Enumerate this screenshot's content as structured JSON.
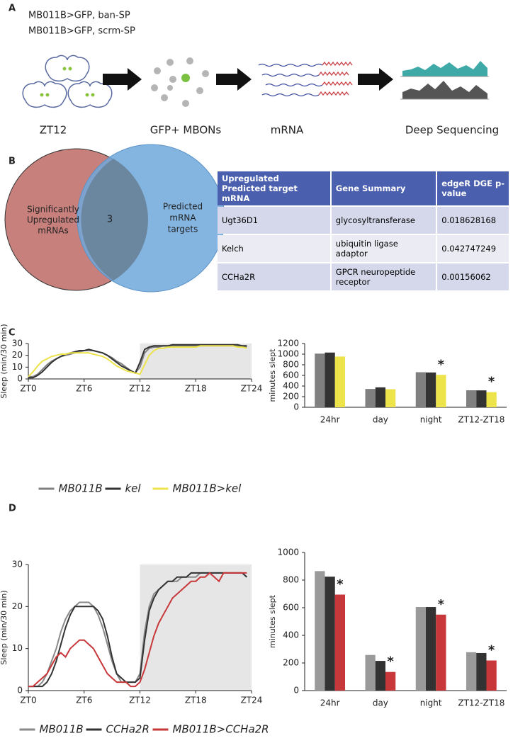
{
  "panels": [
    "A",
    "B",
    "C",
    "D"
  ],
  "diagram": {
    "legend": [
      {
        "text": "MB011B>GFP, ban-SP",
        "color": "#3a9ea5"
      },
      {
        "text": "MB011B>GFP, scrm-SP",
        "color": "#6d6d6d"
      }
    ],
    "steps": [
      {
        "text": "ZT12",
        "color": "#222222"
      },
      {
        "text": "GFP+ MBONs",
        "color": "#6aa534"
      },
      {
        "text": "mRNA",
        "color": "#c9444a"
      },
      {
        "text": "Deep Sequencing",
        "color": "#222222"
      }
    ]
  },
  "venn": {
    "left": [
      "Significantly",
      "Upregulated",
      "mRNAs"
    ],
    "right": [
      "Predicted",
      "mRNA",
      "targets"
    ],
    "overlap": 3
  },
  "table": {
    "header": [
      "Upregulated Predicted target mRNA",
      "Gene Summary",
      "edgeR DGE p-value"
    ],
    "rows": [
      [
        "Ugt36D1",
        "glycosyltransferase",
        0.018628168
      ],
      [
        "Kelch",
        "ubiquitin ligase adaptor",
        0.042747249
      ],
      [
        "CCHa2R",
        "GPCR neuropeptide receptor",
        0.00156062
      ]
    ]
  },
  "chart_data": [
    {
      "type": "line",
      "ylabel": "Sleep (min/30 min)",
      "ylim": [
        0,
        30
      ],
      "yticks": [
        0,
        10,
        20,
        30
      ],
      "xlim": [
        0,
        24
      ],
      "xticks": [
        {
          "value": 0,
          "label": "ZT0"
        },
        {
          "value": 6,
          "label": "ZT6"
        },
        {
          "value": 12,
          "label": "ZT12"
        },
        {
          "value": 18,
          "label": "ZT18"
        },
        {
          "value": 24,
          "label": "ZT24"
        }
      ],
      "shade": [
        12,
        24
      ],
      "x": [
        0,
        0.5,
        1,
        1.5,
        2,
        2.5,
        3,
        3.5,
        4,
        4.5,
        5,
        5.5,
        6,
        6.5,
        7,
        7.5,
        8,
        8.5,
        9,
        9.5,
        10,
        10.5,
        11,
        11.5,
        12,
        12.5,
        13,
        13.5,
        14,
        14.5,
        15,
        15.5,
        16,
        16.5,
        17,
        17.5,
        18,
        18.5,
        19,
        19.5,
        20,
        20.5,
        21,
        21.5,
        22,
        22.5,
        23,
        23.5
      ],
      "series": [
        {
          "name": "MB011B",
          "color": "#808080",
          "values": [
            2,
            2,
            4,
            8,
            12,
            15,
            17,
            19,
            20,
            21,
            22,
            23,
            24,
            24,
            24,
            23,
            22,
            20,
            18,
            15,
            13,
            10,
            7,
            5,
            10,
            22,
            26,
            27,
            27,
            28,
            28,
            28,
            28,
            28,
            28,
            28,
            28,
            28,
            28,
            28,
            28,
            28,
            28,
            28,
            28,
            28,
            28,
            27
          ]
        },
        {
          "name": "kel",
          "color": "#333333",
          "values": [
            1,
            1,
            3,
            6,
            10,
            14,
            17,
            19,
            21,
            22,
            23,
            24,
            24,
            25,
            24,
            23,
            22,
            20,
            17,
            14,
            11,
            9,
            7,
            5,
            14,
            25,
            27,
            28,
            28,
            28,
            28,
            29,
            29,
            29,
            29,
            29,
            29,
            29,
            29,
            29,
            29,
            29,
            29,
            29,
            29,
            29,
            28,
            28
          ]
        },
        {
          "name": "MB011B>kel",
          "color": "#ede34a",
          "values": [
            2,
            6,
            11,
            15,
            17,
            19,
            20,
            21,
            21,
            22,
            22,
            22,
            22,
            22,
            21,
            20,
            19,
            17,
            14,
            11,
            9,
            7,
            6,
            5,
            4,
            12,
            20,
            24,
            26,
            26,
            27,
            27,
            27,
            27,
            27,
            27,
            27,
            28,
            28,
            28,
            28,
            28,
            28,
            28,
            28,
            27,
            27,
            26
          ]
        }
      ]
    },
    {
      "type": "bar",
      "ylabel": "minutes slept",
      "ylim": [
        0,
        1200
      ],
      "yticks": [
        0,
        200,
        400,
        600,
        800,
        1000,
        1200
      ],
      "categories": [
        "24hr",
        "day",
        "night",
        "ZT12-ZT18"
      ],
      "series": [
        {
          "color": "#808080",
          "values": [
            1010,
            345,
            660,
            320
          ]
        },
        {
          "color": "#333333",
          "values": [
            1030,
            375,
            655,
            318
          ]
        },
        {
          "color": "#ede34a",
          "values": [
            955,
            340,
            610,
            285
          ]
        }
      ],
      "annotations": [
        {
          "text": "*",
          "category": "night",
          "series": 2
        },
        {
          "text": "*",
          "category": "ZT12-ZT18",
          "series": 2
        }
      ]
    },
    {
      "type": "line",
      "ylabel": "Sleep (min/30 min)",
      "ylim": [
        0,
        30
      ],
      "yticks": [
        0,
        10,
        20,
        30
      ],
      "xlim": [
        0,
        24
      ],
      "xticks": [
        {
          "value": 0,
          "label": "ZT0"
        },
        {
          "value": 6,
          "label": "ZT6"
        },
        {
          "value": 12,
          "label": "ZT12"
        },
        {
          "value": 18,
          "label": "ZT18"
        },
        {
          "value": 24,
          "label": "ZT24"
        }
      ],
      "shade": [
        12,
        24
      ],
      "x": [
        0,
        0.5,
        1,
        1.5,
        2,
        2.5,
        3,
        3.5,
        4,
        4.5,
        5,
        5.5,
        6,
        6.5,
        7,
        7.5,
        8,
        8.5,
        9,
        9.5,
        10,
        10.5,
        11,
        11.5,
        12,
        12.5,
        13,
        13.5,
        14,
        14.5,
        15,
        15.5,
        16,
        16.5,
        17,
        17.5,
        18,
        18.5,
        19,
        19.5,
        20,
        20.5,
        21,
        21.5,
        22,
        22.5,
        23,
        23.5
      ],
      "series": [
        {
          "name": "MB011B",
          "color": "#8a8a8a",
          "values": [
            1,
            1,
            1,
            2,
            4,
            7,
            10,
            14,
            17,
            19,
            20,
            21,
            21,
            21,
            20,
            18,
            15,
            11,
            7,
            4,
            2,
            2,
            2,
            2,
            4,
            14,
            20,
            23,
            24,
            25,
            26,
            26,
            26,
            27,
            27,
            27,
            27,
            28,
            28,
            28,
            28,
            28,
            28,
            28,
            28,
            28,
            28,
            27
          ]
        },
        {
          "name": "CCHa2R",
          "color": "#333333",
          "values": [
            1,
            1,
            1,
            1,
            2,
            4,
            7,
            11,
            15,
            18,
            20,
            20,
            20,
            20,
            20,
            19,
            17,
            13,
            8,
            4,
            3,
            2,
            2,
            2,
            3,
            12,
            19,
            22,
            24,
            25,
            26,
            26,
            27,
            27,
            27,
            28,
            28,
            28,
            28,
            28,
            28,
            28,
            28,
            28,
            28,
            28,
            28,
            27
          ]
        },
        {
          "name": "MB011B>CCHa2R",
          "color": "#c8373a",
          "values": [
            1,
            1,
            2,
            3,
            4,
            6,
            8,
            9,
            8,
            10,
            11,
            12,
            12,
            11,
            10,
            8,
            6,
            4,
            3,
            2,
            2,
            2,
            1,
            1,
            2,
            5,
            9,
            13,
            16,
            18,
            20,
            22,
            23,
            24,
            25,
            26,
            26,
            27,
            27,
            28,
            27,
            26,
            28,
            28,
            28,
            28,
            28,
            28
          ]
        }
      ]
    },
    {
      "type": "bar",
      "ylabel": "minutes slept",
      "ylim": [
        0,
        1000
      ],
      "yticks": [
        0,
        200,
        400,
        600,
        800,
        1000
      ],
      "categories": [
        "24hr",
        "day",
        "night",
        "ZT12-ZT18"
      ],
      "series": [
        {
          "color": "#9a9a9a",
          "values": [
            865,
            258,
            605,
            278
          ]
        },
        {
          "color": "#333333",
          "values": [
            825,
            215,
            605,
            272
          ]
        },
        {
          "color": "#c8373a",
          "values": [
            695,
            135,
            550,
            218
          ]
        }
      ],
      "annotations": [
        {
          "text": "*",
          "category": "24hr",
          "series": 2
        },
        {
          "text": "*",
          "category": "day",
          "series": 2
        },
        {
          "text": "*",
          "category": "night",
          "series": 2
        },
        {
          "text": "*",
          "category": "ZT12-ZT18",
          "series": 2
        }
      ]
    }
  ]
}
